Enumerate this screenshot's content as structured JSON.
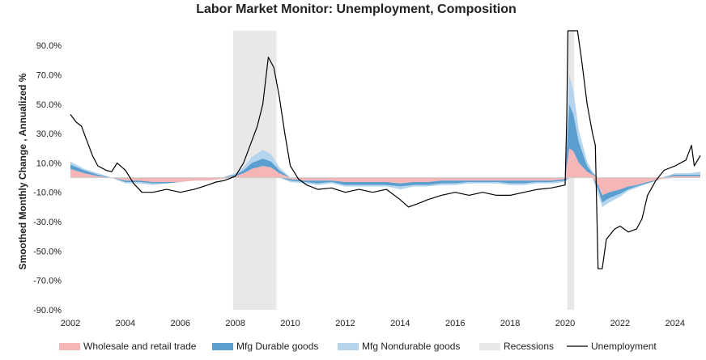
{
  "chart_data": {
    "type": "area",
    "title": "Labor Market Monitor: Unemployment, Composition",
    "ylabel": "Smoothed Monthly Change , Annualized  %",
    "xlabel": "",
    "ylim": [
      -90,
      100
    ],
    "xlim": [
      2002.0,
      2024.92
    ],
    "y_ticks": [
      90,
      70,
      50,
      30,
      10,
      -10,
      -30,
      -50,
      -70,
      -90
    ],
    "y_tick_labels": [
      "90.0%",
      "70.0%",
      "50.0%",
      "30.0%",
      "10.0%",
      "-10.0%",
      "-30.0%",
      "-50.0%",
      "-70.0%",
      "-90.0%"
    ],
    "x_ticks": [
      2002,
      2004,
      2006,
      2008,
      2010,
      2012,
      2014,
      2016,
      2018,
      2020,
      2022,
      2024
    ],
    "x_tick_labels": [
      "2002",
      "2004",
      "2006",
      "2008",
      "2010",
      "2012",
      "2014",
      "2016",
      "2018",
      "2020",
      "2022",
      "2024"
    ],
    "recessions": [
      [
        2007.92,
        2009.5
      ],
      [
        2020.08,
        2020.33
      ]
    ],
    "colors": {
      "wholesale": "#f4b6b6",
      "durable": "#5b9fd0",
      "nondurable": "#b5d5ee",
      "recession": "#e8e8e8",
      "unemployment": "#000000"
    },
    "series": [
      {
        "key": "wholesale",
        "name": "Wholesale and retail trade",
        "points": [
          [
            2002,
            6
          ],
          [
            2002.5,
            3
          ],
          [
            2003,
            1
          ],
          [
            2003.5,
            0
          ],
          [
            2004,
            -2
          ],
          [
            2004.5,
            -2
          ],
          [
            2005,
            -3
          ],
          [
            2005.5,
            -3
          ],
          [
            2006,
            -3
          ],
          [
            2006.5,
            -2
          ],
          [
            2007,
            -2
          ],
          [
            2007.5,
            -1
          ],
          [
            2008,
            1
          ],
          [
            2008.3,
            3
          ],
          [
            2008.6,
            6
          ],
          [
            2009,
            8
          ],
          [
            2009.3,
            7
          ],
          [
            2009.6,
            3
          ],
          [
            2010,
            -1
          ],
          [
            2010.5,
            -2
          ],
          [
            2011,
            -2
          ],
          [
            2011.5,
            -2
          ],
          [
            2012,
            -3
          ],
          [
            2012.5,
            -3
          ],
          [
            2013,
            -3
          ],
          [
            2013.5,
            -3
          ],
          [
            2014,
            -4
          ],
          [
            2014.5,
            -3
          ],
          [
            2015,
            -3
          ],
          [
            2015.5,
            -2
          ],
          [
            2016,
            -2
          ],
          [
            2016.5,
            -2
          ],
          [
            2017,
            -2
          ],
          [
            2017.5,
            -2
          ],
          [
            2018,
            -2
          ],
          [
            2018.5,
            -2
          ],
          [
            2019,
            -2
          ],
          [
            2019.5,
            -2
          ],
          [
            2020,
            -1
          ],
          [
            2020.15,
            20
          ],
          [
            2020.3,
            18
          ],
          [
            2020.5,
            10
          ],
          [
            2020.8,
            4
          ],
          [
            2021,
            2
          ],
          [
            2021.2,
            -5
          ],
          [
            2021.35,
            -12
          ],
          [
            2021.6,
            -10
          ],
          [
            2022,
            -8
          ],
          [
            2022.3,
            -6
          ],
          [
            2022.6,
            -5
          ],
          [
            2023,
            -3
          ],
          [
            2023.5,
            -1
          ],
          [
            2024,
            1
          ],
          [
            2024.5,
            1
          ],
          [
            2024.92,
            1
          ]
        ]
      },
      {
        "key": "durable",
        "name": "Mfg Durable goods",
        "points": [
          [
            2002,
            3
          ],
          [
            2002.5,
            2
          ],
          [
            2003,
            1
          ],
          [
            2003.5,
            0
          ],
          [
            2004,
            -1
          ],
          [
            2004.5,
            -1
          ],
          [
            2005,
            -1
          ],
          [
            2005.5,
            -1
          ],
          [
            2006,
            0
          ],
          [
            2006.5,
            0
          ],
          [
            2007,
            0
          ],
          [
            2007.5,
            0
          ],
          [
            2008,
            1
          ],
          [
            2008.3,
            2
          ],
          [
            2008.6,
            4
          ],
          [
            2009,
            5
          ],
          [
            2009.3,
            4
          ],
          [
            2009.6,
            2
          ],
          [
            2010,
            -1
          ],
          [
            2010.5,
            -1
          ],
          [
            2011,
            -2
          ],
          [
            2011.5,
            -1
          ],
          [
            2012,
            -2
          ],
          [
            2012.5,
            -2
          ],
          [
            2013,
            -2
          ],
          [
            2013.5,
            -2
          ],
          [
            2014,
            -2
          ],
          [
            2014.5,
            -2
          ],
          [
            2015,
            -2
          ],
          [
            2015.5,
            -2
          ],
          [
            2016,
            -2
          ],
          [
            2016.5,
            -1
          ],
          [
            2017,
            -1
          ],
          [
            2017.5,
            -1
          ],
          [
            2018,
            -2
          ],
          [
            2018.5,
            -2
          ],
          [
            2019,
            -1
          ],
          [
            2019.5,
            -1
          ],
          [
            2020,
            -1
          ],
          [
            2020.15,
            30
          ],
          [
            2020.3,
            25
          ],
          [
            2020.5,
            14
          ],
          [
            2020.8,
            4
          ],
          [
            2021,
            1
          ],
          [
            2021.2,
            -3
          ],
          [
            2021.35,
            -5
          ],
          [
            2021.6,
            -4
          ],
          [
            2022,
            -3
          ],
          [
            2022.3,
            -2
          ],
          [
            2022.6,
            -1
          ],
          [
            2023,
            -1
          ],
          [
            2023.5,
            0
          ],
          [
            2024,
            1
          ],
          [
            2024.5,
            1
          ],
          [
            2024.92,
            1
          ]
        ]
      },
      {
        "key": "nondurable",
        "name": "Mfg Nondurable goods",
        "points": [
          [
            2002,
            2
          ],
          [
            2002.5,
            1
          ],
          [
            2003,
            1
          ],
          [
            2003.5,
            0
          ],
          [
            2004,
            -1
          ],
          [
            2004.5,
            -1
          ],
          [
            2005,
            -1
          ],
          [
            2005.5,
            0
          ],
          [
            2006,
            0
          ],
          [
            2006.5,
            0
          ],
          [
            2007,
            0
          ],
          [
            2007.5,
            0
          ],
          [
            2008,
            1
          ],
          [
            2008.3,
            2
          ],
          [
            2008.6,
            4
          ],
          [
            2009,
            6
          ],
          [
            2009.3,
            5
          ],
          [
            2009.6,
            2
          ],
          [
            2010,
            -1
          ],
          [
            2010.5,
            -1
          ],
          [
            2011,
            -1
          ],
          [
            2011.5,
            -1
          ],
          [
            2012,
            -1
          ],
          [
            2012.5,
            -1
          ],
          [
            2013,
            -1
          ],
          [
            2013.5,
            -1
          ],
          [
            2014,
            -2
          ],
          [
            2014.5,
            -1
          ],
          [
            2015,
            -1
          ],
          [
            2015.5,
            -1
          ],
          [
            2016,
            -1
          ],
          [
            2016.5,
            -1
          ],
          [
            2017,
            -1
          ],
          [
            2017.5,
            -1
          ],
          [
            2018,
            -1
          ],
          [
            2018.5,
            -1
          ],
          [
            2019,
            -1
          ],
          [
            2019.5,
            -1
          ],
          [
            2020,
            -1
          ],
          [
            2020.15,
            20
          ],
          [
            2020.3,
            16
          ],
          [
            2020.5,
            8
          ],
          [
            2020.8,
            3
          ],
          [
            2021,
            1
          ],
          [
            2021.2,
            -3
          ],
          [
            2021.35,
            -3
          ],
          [
            2021.6,
            -3
          ],
          [
            2022,
            -2
          ],
          [
            2022.3,
            -1
          ],
          [
            2022.6,
            -1
          ],
          [
            2023,
            0
          ],
          [
            2023.5,
            0
          ],
          [
            2024,
            1
          ],
          [
            2024.5,
            1
          ],
          [
            2024.92,
            2
          ]
        ]
      },
      {
        "key": "unemployment",
        "name": "Unemployment",
        "points": [
          [
            2002,
            43
          ],
          [
            2002.2,
            38
          ],
          [
            2002.4,
            35
          ],
          [
            2002.6,
            25
          ],
          [
            2002.8,
            15
          ],
          [
            2003,
            8
          ],
          [
            2003.3,
            5
          ],
          [
            2003.5,
            4
          ],
          [
            2003.7,
            10
          ],
          [
            2004,
            5
          ],
          [
            2004.3,
            -4
          ],
          [
            2004.6,
            -10
          ],
          [
            2005,
            -10
          ],
          [
            2005.5,
            -8
          ],
          [
            2006,
            -10
          ],
          [
            2006.5,
            -8
          ],
          [
            2007,
            -5
          ],
          [
            2007.3,
            -3
          ],
          [
            2007.6,
            -2
          ],
          [
            2008,
            1
          ],
          [
            2008.3,
            10
          ],
          [
            2008.6,
            25
          ],
          [
            2008.8,
            35
          ],
          [
            2009,
            50
          ],
          [
            2009.2,
            82
          ],
          [
            2009.4,
            75
          ],
          [
            2009.6,
            55
          ],
          [
            2009.8,
            30
          ],
          [
            2010,
            8
          ],
          [
            2010.3,
            -1
          ],
          [
            2010.6,
            -5
          ],
          [
            2011,
            -8
          ],
          [
            2011.5,
            -7
          ],
          [
            2012,
            -10
          ],
          [
            2012.5,
            -8
          ],
          [
            2013,
            -10
          ],
          [
            2013.5,
            -8
          ],
          [
            2014,
            -15
          ],
          [
            2014.3,
            -20
          ],
          [
            2014.6,
            -18
          ],
          [
            2015,
            -15
          ],
          [
            2015.5,
            -12
          ],
          [
            2016,
            -10
          ],
          [
            2016.5,
            -12
          ],
          [
            2017,
            -10
          ],
          [
            2017.5,
            -12
          ],
          [
            2018,
            -12
          ],
          [
            2018.5,
            -10
          ],
          [
            2019,
            -8
          ],
          [
            2019.5,
            -7
          ],
          [
            2020,
            -5
          ],
          [
            2020.06,
            40
          ],
          [
            2020.1,
            100
          ],
          [
            2020.2,
            100
          ],
          [
            2020.35,
            100
          ],
          [
            2020.45,
            100
          ],
          [
            2020.6,
            80
          ],
          [
            2020.8,
            50
          ],
          [
            2021,
            30
          ],
          [
            2021.1,
            22
          ],
          [
            2021.2,
            -62
          ],
          [
            2021.35,
            -62
          ],
          [
            2021.5,
            -42
          ],
          [
            2021.8,
            -35
          ],
          [
            2022,
            -33
          ],
          [
            2022.3,
            -37
          ],
          [
            2022.6,
            -35
          ],
          [
            2022.8,
            -28
          ],
          [
            2023,
            -12
          ],
          [
            2023.3,
            -2
          ],
          [
            2023.6,
            5
          ],
          [
            2024,
            8
          ],
          [
            2024.4,
            12
          ],
          [
            2024.6,
            22
          ],
          [
            2024.7,
            8
          ],
          [
            2024.92,
            15
          ]
        ]
      }
    ],
    "legend": [
      {
        "key": "wholesale",
        "label": "Wholesale and retail trade"
      },
      {
        "key": "durable",
        "label": "Mfg Durable goods"
      },
      {
        "key": "nondurable",
        "label": "Mfg Nondurable goods"
      },
      {
        "key": "recession",
        "label": "Recessions"
      },
      {
        "key": "unemployment",
        "label": "Unemployment"
      }
    ],
    "legend_position": "bottom"
  }
}
